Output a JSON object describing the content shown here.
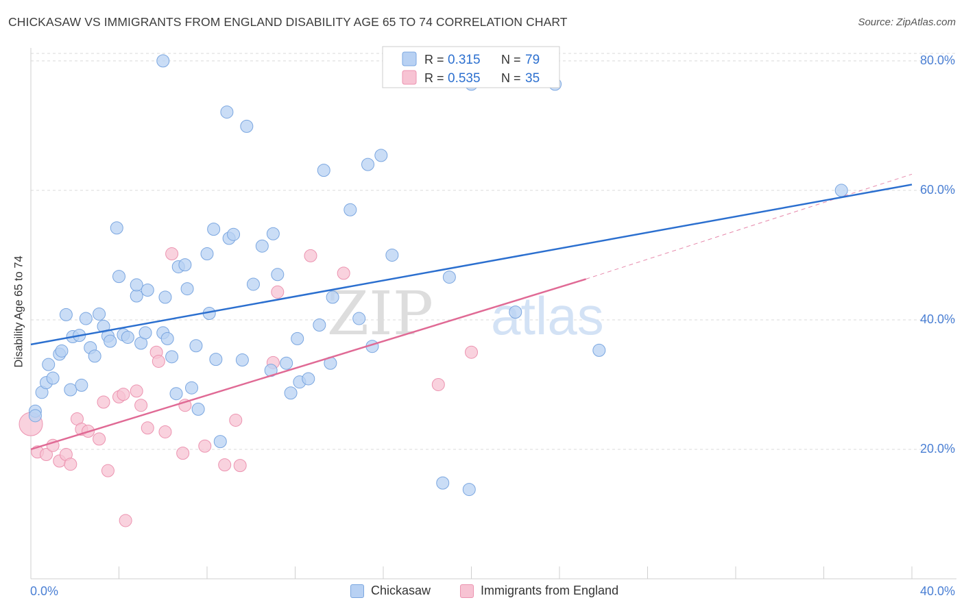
{
  "header": {
    "title": "CHICKASAW VS IMMIGRANTS FROM ENGLAND DISABILITY AGE 65 TO 74 CORRELATION CHART",
    "source": "Source: ZipAtlas.com"
  },
  "watermark": {
    "zip": "ZIP",
    "atlas": "atlas"
  },
  "legend": {
    "rows": [
      {
        "r_label": "R =",
        "r_value": "0.315",
        "n_label": "N =",
        "n_value": "79"
      },
      {
        "r_label": "R =",
        "r_value": "0.535",
        "n_label": "N =",
        "n_value": "35"
      }
    ]
  },
  "bottom_legend": {
    "series1": "Chickasaw",
    "series2": "Immigrants from England"
  },
  "colors": {
    "blue_fill": "#b8d1f3",
    "blue_stroke": "#7aa6e0",
    "blue_line": "#2b6fcf",
    "pink_fill": "#f7c3d3",
    "pink_stroke": "#ec93b0",
    "pink_line": "#e06a95",
    "axis_text": "#4a7fd4",
    "grid": "#d9d9d9"
  },
  "chart_data": {
    "type": "scatter",
    "title": "CHICKASAW VS IMMIGRANTS FROM ENGLAND DISABILITY AGE 65 TO 74 CORRELATION CHART",
    "xlabel": "",
    "ylabel": "Disability Age 65 to 74",
    "xlim": [
      0,
      40
    ],
    "ylim": [
      0,
      82
    ],
    "x_tick_labels": [
      "0.0%",
      "40.0%"
    ],
    "y_ticks": [
      20,
      40,
      60,
      80
    ],
    "y_tick_labels": [
      "20.0%",
      "40.0%",
      "60.0%",
      "80.0%"
    ],
    "grid": "horizontal dashed",
    "legend_position": "top-center",
    "series": [
      {
        "name": "Chickasaw",
        "color": "#b8d1f3",
        "R": 0.315,
        "N": 79,
        "trend": {
          "x": [
            0,
            40
          ],
          "y": [
            36.2,
            60.9
          ]
        },
        "points": [
          [
            0.2,
            25.9
          ],
          [
            0.2,
            25.2
          ],
          [
            0.5,
            28.8
          ],
          [
            0.7,
            30.3
          ],
          [
            0.8,
            33.1
          ],
          [
            1.0,
            31.0
          ],
          [
            1.3,
            34.7
          ],
          [
            1.4,
            35.2
          ],
          [
            1.6,
            40.8
          ],
          [
            1.8,
            29.2
          ],
          [
            1.9,
            37.4
          ],
          [
            2.2,
            37.6
          ],
          [
            2.3,
            29.9
          ],
          [
            2.5,
            40.2
          ],
          [
            2.7,
            35.7
          ],
          [
            2.9,
            34.4
          ],
          [
            3.1,
            40.9
          ],
          [
            3.3,
            39.0
          ],
          [
            3.5,
            37.5
          ],
          [
            3.6,
            36.7
          ],
          [
            3.9,
            54.2
          ],
          [
            4.0,
            46.7
          ],
          [
            4.2,
            37.7
          ],
          [
            4.4,
            37.3
          ],
          [
            4.8,
            43.7
          ],
          [
            4.8,
            45.4
          ],
          [
            5.0,
            36.4
          ],
          [
            5.2,
            38.0
          ],
          [
            5.3,
            44.6
          ],
          [
            6.0,
            38.0
          ],
          [
            6.0,
            80.0
          ],
          [
            6.1,
            43.5
          ],
          [
            6.2,
            37.1
          ],
          [
            6.4,
            34.3
          ],
          [
            6.6,
            28.6
          ],
          [
            6.7,
            48.2
          ],
          [
            7.0,
            48.5
          ],
          [
            7.1,
            44.8
          ],
          [
            7.3,
            29.5
          ],
          [
            7.5,
            36.0
          ],
          [
            7.6,
            26.2
          ],
          [
            8.0,
            50.2
          ],
          [
            8.1,
            41.0
          ],
          [
            8.3,
            54.0
          ],
          [
            8.4,
            33.9
          ],
          [
            8.6,
            21.2
          ],
          [
            8.9,
            72.1
          ],
          [
            9.0,
            52.6
          ],
          [
            9.2,
            53.2
          ],
          [
            9.6,
            33.8
          ],
          [
            9.8,
            69.9
          ],
          [
            10.1,
            45.5
          ],
          [
            10.5,
            51.4
          ],
          [
            10.9,
            32.2
          ],
          [
            11.0,
            53.3
          ],
          [
            11.2,
            47.0
          ],
          [
            11.6,
            33.3
          ],
          [
            11.8,
            28.7
          ],
          [
            12.1,
            37.1
          ],
          [
            12.2,
            30.4
          ],
          [
            12.6,
            30.9
          ],
          [
            13.1,
            39.2
          ],
          [
            13.3,
            63.1
          ],
          [
            13.6,
            33.3
          ],
          [
            13.7,
            43.5
          ],
          [
            14.5,
            57.0
          ],
          [
            14.9,
            40.2
          ],
          [
            15.3,
            64.0
          ],
          [
            15.5,
            35.9
          ],
          [
            15.9,
            65.4
          ],
          [
            16.4,
            50.0
          ],
          [
            18.7,
            14.8
          ],
          [
            19.0,
            46.6
          ],
          [
            19.9,
            13.8
          ],
          [
            20.0,
            76.4
          ],
          [
            22.0,
            41.2
          ],
          [
            23.8,
            76.4
          ],
          [
            25.8,
            35.3
          ],
          [
            36.8,
            60.0
          ]
        ]
      },
      {
        "name": "Immigrants from England",
        "color": "#f7c3d3",
        "R": 0.535,
        "N": 35,
        "trend": {
          "x": [
            0,
            25.2
          ],
          "y": [
            20.0,
            46.3
          ]
        },
        "trend_extension": {
          "x": [
            25.2,
            40
          ],
          "y": [
            46.3,
            62.5
          ]
        },
        "points": [
          [
            0.0,
            23.9
          ],
          [
            0.3,
            19.6
          ],
          [
            0.7,
            19.2
          ],
          [
            1.0,
            20.6
          ],
          [
            1.3,
            18.2
          ],
          [
            1.6,
            19.2
          ],
          [
            1.8,
            17.7
          ],
          [
            2.1,
            24.7
          ],
          [
            2.3,
            23.1
          ],
          [
            2.6,
            22.8
          ],
          [
            3.1,
            21.6
          ],
          [
            3.3,
            27.3
          ],
          [
            3.5,
            16.7
          ],
          [
            4.0,
            28.1
          ],
          [
            4.2,
            28.5
          ],
          [
            4.3,
            9.0
          ],
          [
            4.8,
            29.0
          ],
          [
            5.0,
            26.8
          ],
          [
            5.3,
            23.3
          ],
          [
            5.7,
            35.0
          ],
          [
            5.8,
            33.6
          ],
          [
            6.1,
            22.7
          ],
          [
            6.4,
            50.2
          ],
          [
            6.9,
            19.4
          ],
          [
            7.0,
            26.8
          ],
          [
            7.9,
            20.5
          ],
          [
            8.8,
            17.6
          ],
          [
            9.3,
            24.5
          ],
          [
            9.5,
            17.5
          ],
          [
            11.0,
            33.4
          ],
          [
            11.2,
            44.3
          ],
          [
            12.7,
            49.9
          ],
          [
            14.2,
            47.2
          ],
          [
            18.5,
            30.0
          ],
          [
            20.0,
            35.0
          ]
        ]
      }
    ]
  }
}
